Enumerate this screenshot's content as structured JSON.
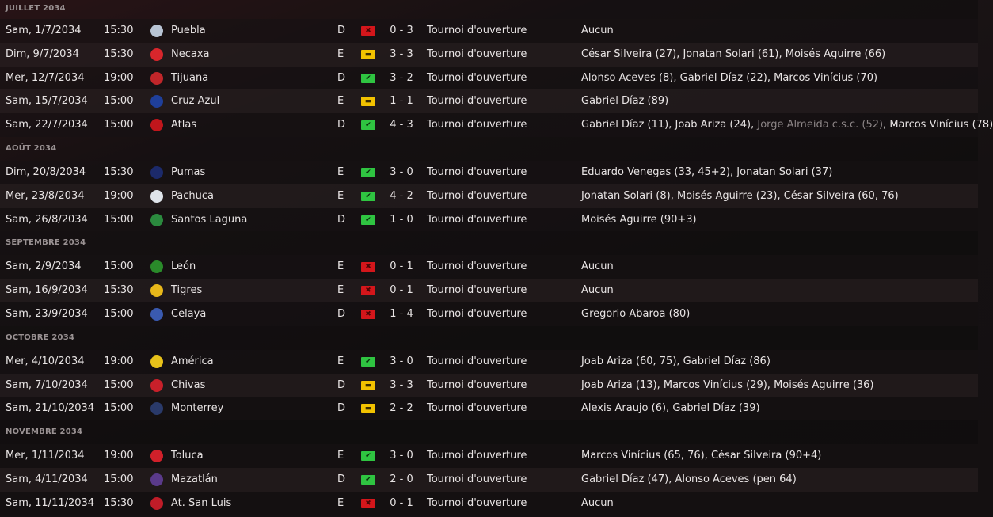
{
  "colors": {
    "win": "#2fc441",
    "draw": "#f2c200",
    "loss": "#d4161b"
  },
  "months": [
    {
      "label": "JUILLET 2034",
      "matches": [
        {
          "date": "Sam, 1/7/2034",
          "time": "15:30",
          "team": "Puebla",
          "crest": "#b8c4d4",
          "venue": "D",
          "result": "L",
          "score": "0 - 3",
          "comp": "Tournoi d'ouverture",
          "scorers": [
            {
              "t": "Aucun"
            }
          ]
        },
        {
          "date": "Dim, 9/7/2034",
          "time": "15:30",
          "team": "Necaxa",
          "crest": "#d8262c",
          "venue": "E",
          "result": "D",
          "score": "3 - 3",
          "comp": "Tournoi d'ouverture",
          "scorers": [
            {
              "t": "César Silveira (27)"
            },
            {
              "t": "Jonatan Solari (61)"
            },
            {
              "t": "Moisés Aguirre (66)"
            }
          ]
        },
        {
          "date": "Mer, 12/7/2034",
          "time": "19:00",
          "team": "Tijuana",
          "crest": "#c0262a",
          "venue": "D",
          "result": "W",
          "score": "3 - 2",
          "comp": "Tournoi d'ouverture",
          "scorers": [
            {
              "t": "Alonso Aceves (8)"
            },
            {
              "t": "Gabriel Díaz (22)"
            },
            {
              "t": "Marcos Vinícius (70)"
            }
          ]
        },
        {
          "date": "Sam, 15/7/2034",
          "time": "15:00",
          "team": "Cruz Azul",
          "crest": "#1f3f9a",
          "venue": "E",
          "result": "D",
          "score": "1 - 1",
          "comp": "Tournoi d'ouverture",
          "scorers": [
            {
              "t": "Gabriel Díaz (89)"
            }
          ]
        },
        {
          "date": "Sam, 22/7/2034",
          "time": "15:00",
          "team": "Atlas",
          "crest": "#c0161c",
          "venue": "D",
          "result": "W",
          "score": "4 - 3",
          "comp": "Tournoi d'ouverture",
          "scorers": [
            {
              "t": "Gabriel Díaz (11)"
            },
            {
              "t": "Joab Ariza (24)"
            },
            {
              "t": "Jorge Almeida c.s.c. (52)",
              "og": true
            },
            {
              "t": "Marcos Vinícius (78)"
            }
          ]
        }
      ]
    },
    {
      "label": "AOÛT 2034",
      "matches": [
        {
          "date": "Dim, 20/8/2034",
          "time": "15:30",
          "team": "Pumas",
          "crest": "#1c2a6a",
          "venue": "E",
          "result": "W",
          "score": "3 - 0",
          "comp": "Tournoi d'ouverture",
          "scorers": [
            {
              "t": "Eduardo Venegas (33, 45+2)"
            },
            {
              "t": "Jonatan Solari (37)"
            }
          ]
        },
        {
          "date": "Mer, 23/8/2034",
          "time": "19:00",
          "team": "Pachuca",
          "crest": "#dfe4ea",
          "venue": "E",
          "result": "W",
          "score": "4 - 2",
          "comp": "Tournoi d'ouverture",
          "scorers": [
            {
              "t": "Jonatan Solari (8)"
            },
            {
              "t": "Moisés Aguirre (23)"
            },
            {
              "t": "César Silveira (60, 76)"
            }
          ]
        },
        {
          "date": "Sam, 26/8/2034",
          "time": "15:00",
          "team": "Santos Laguna",
          "crest": "#2b8a3e",
          "venue": "D",
          "result": "W",
          "score": "1 - 0",
          "comp": "Tournoi d'ouverture",
          "scorers": [
            {
              "t": "Moisés Aguirre (90+3)"
            }
          ]
        }
      ]
    },
    {
      "label": "SEPTEMBRE 2034",
      "matches": [
        {
          "date": "Sam, 2/9/2034",
          "time": "15:00",
          "team": "León",
          "crest": "#2a8a2a",
          "venue": "E",
          "result": "L",
          "score": "0 - 1",
          "comp": "Tournoi d'ouverture",
          "scorers": [
            {
              "t": "Aucun"
            }
          ]
        },
        {
          "date": "Sam, 16/9/2034",
          "time": "15:30",
          "team": "Tigres",
          "crest": "#e8b81a",
          "venue": "E",
          "result": "L",
          "score": "0 - 1",
          "comp": "Tournoi d'ouverture",
          "scorers": [
            {
              "t": "Aucun"
            }
          ]
        },
        {
          "date": "Sam, 23/9/2034",
          "time": "15:00",
          "team": "Celaya",
          "crest": "#3a5ab0",
          "venue": "D",
          "result": "L",
          "score": "1 - 4",
          "comp": "Tournoi d'ouverture",
          "scorers": [
            {
              "t": "Gregorio Abaroa (80)"
            }
          ]
        }
      ]
    },
    {
      "label": "OCTOBRE 2034",
      "matches": [
        {
          "date": "Mer, 4/10/2034",
          "time": "19:00",
          "team": "América",
          "crest": "#e8c21a",
          "venue": "E",
          "result": "W",
          "score": "3 - 0",
          "comp": "Tournoi d'ouverture",
          "scorers": [
            {
              "t": "Joab Ariza (60, 75)"
            },
            {
              "t": "Gabriel Díaz (86)"
            }
          ]
        },
        {
          "date": "Sam, 7/10/2034",
          "time": "15:00",
          "team": "Chivas",
          "crest": "#c8202a",
          "venue": "D",
          "result": "D",
          "score": "3 - 3",
          "comp": "Tournoi d'ouverture",
          "scorers": [
            {
              "t": "Joab Ariza (13)"
            },
            {
              "t": "Marcos Vinícius (29)"
            },
            {
              "t": "Moisés Aguirre (36)"
            }
          ]
        },
        {
          "date": "Sam, 21/10/2034",
          "time": "15:00",
          "team": "Monterrey",
          "crest": "#2a3a6a",
          "venue": "D",
          "result": "D",
          "score": "2 - 2",
          "comp": "Tournoi d'ouverture",
          "scorers": [
            {
              "t": "Alexis Araujo (6)"
            },
            {
              "t": "Gabriel Díaz (39)"
            }
          ]
        }
      ]
    },
    {
      "label": "NOVEMBRE 2034",
      "matches": [
        {
          "date": "Mer, 1/11/2034",
          "time": "19:00",
          "team": "Toluca",
          "crest": "#d0202a",
          "venue": "E",
          "result": "W",
          "score": "3 - 0",
          "comp": "Tournoi d'ouverture",
          "scorers": [
            {
              "t": "Marcos Vinícius (65, 76)"
            },
            {
              "t": "César Silveira (90+4)"
            }
          ]
        },
        {
          "date": "Sam, 4/11/2034",
          "time": "15:00",
          "team": "Mazatlán",
          "crest": "#5a3a8a",
          "venue": "D",
          "result": "W",
          "score": "2 - 0",
          "comp": "Tournoi d'ouverture",
          "scorers": [
            {
              "t": "Gabriel Díaz (47)"
            },
            {
              "t": "Alonso Aceves (pen 64)"
            }
          ]
        },
        {
          "date": "Sam, 11/11/2034",
          "time": "15:30",
          "team": "At. San Luis",
          "crest": "#c01c28",
          "venue": "E",
          "result": "L",
          "score": "0 - 1",
          "comp": "Tournoi d'ouverture",
          "scorers": [
            {
              "t": "Aucun"
            }
          ]
        }
      ]
    }
  ]
}
